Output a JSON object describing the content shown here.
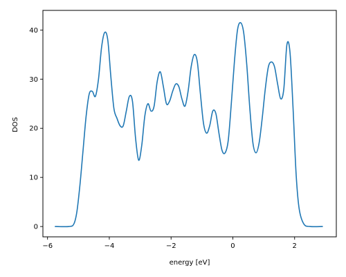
{
  "chart_data": {
    "type": "line",
    "title": "",
    "xlabel": "energy [eV]",
    "ylabel": "DOS",
    "xlim": [
      -6.15,
      3.35
    ],
    "ylim": [
      -2.1,
      44.0
    ],
    "xticks": [
      -6,
      -4,
      -2,
      0,
      2
    ],
    "yticks": [
      0,
      10,
      20,
      30,
      40
    ],
    "grid": false,
    "legend": "none",
    "series": [
      {
        "color": "#1f77b4",
        "x": [
          -5.75,
          -5.3,
          -5.15,
          -5.05,
          -4.95,
          -4.85,
          -4.75,
          -4.65,
          -4.55,
          -4.45,
          -4.35,
          -4.25,
          -4.15,
          -4.05,
          -3.95,
          -3.85,
          -3.75,
          -3.65,
          -3.55,
          -3.45,
          -3.35,
          -3.25,
          -3.15,
          -3.05,
          -2.95,
          -2.85,
          -2.75,
          -2.65,
          -2.55,
          -2.45,
          -2.35,
          -2.25,
          -2.15,
          -2.05,
          -1.95,
          -1.85,
          -1.75,
          -1.65,
          -1.55,
          -1.45,
          -1.35,
          -1.25,
          -1.15,
          -1.05,
          -0.95,
          -0.85,
          -0.75,
          -0.65,
          -0.55,
          -0.45,
          -0.35,
          -0.25,
          -0.15,
          -0.05,
          0.05,
          0.15,
          0.25,
          0.35,
          0.45,
          0.55,
          0.65,
          0.75,
          0.85,
          0.95,
          1.05,
          1.15,
          1.25,
          1.35,
          1.45,
          1.55,
          1.65,
          1.75,
          1.85,
          1.95,
          2.05,
          2.15,
          2.3,
          2.5,
          2.9
        ],
        "y": [
          0,
          0,
          0.5,
          3.0,
          8.5,
          15.5,
          22.5,
          27.0,
          27.5,
          26.5,
          30.0,
          36.5,
          39.5,
          38.0,
          30.5,
          24.0,
          22.0,
          20.5,
          20.5,
          23.5,
          26.5,
          25.5,
          18.0,
          13.5,
          16.5,
          22.5,
          25.0,
          23.5,
          24.5,
          29.5,
          31.5,
          28.5,
          25.0,
          25.5,
          27.5,
          29.0,
          28.5,
          26.0,
          24.5,
          27.5,
          32.5,
          35.0,
          33.5,
          27.0,
          21.0,
          19.0,
          20.5,
          23.5,
          23.0,
          19.0,
          15.5,
          15.0,
          17.5,
          25.0,
          33.5,
          40.0,
          41.5,
          39.5,
          33.0,
          24.0,
          17.0,
          15.0,
          17.0,
          22.0,
          28.0,
          32.5,
          33.5,
          32.5,
          29.0,
          26.0,
          28.0,
          37.0,
          35.5,
          24.0,
          10.5,
          3.5,
          0.5,
          0,
          0
        ]
      }
    ]
  }
}
